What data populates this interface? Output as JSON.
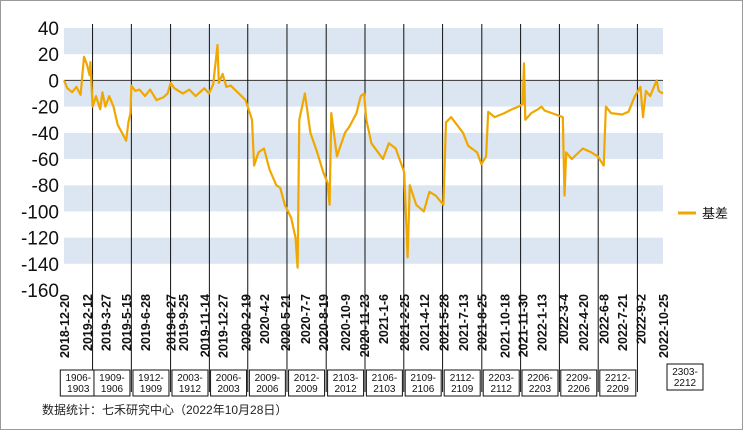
{
  "chart_data": {
    "type": "line",
    "series": [
      {
        "name": "基差",
        "color": "#F0A800",
        "points": [
          [
            "2018-12-20",
            0
          ],
          [
            "2018-12-28",
            -6
          ],
          [
            "2019-1-8",
            -9
          ],
          [
            "2019-1-18",
            -5
          ],
          [
            "2019-1-28",
            -11
          ],
          [
            "2019-2-5",
            18
          ],
          [
            "2019-2-12",
            12
          ],
          [
            "2019-2-18",
            4
          ],
          [
            "2019-2-20",
            14
          ],
          [
            "2019-2-25",
            -20
          ],
          [
            "2019-3-5",
            -12
          ],
          [
            "2019-3-15",
            -22
          ],
          [
            "2019-3-20",
            -9
          ],
          [
            "2019-3-27",
            -20
          ],
          [
            "2019-4-5",
            -12
          ],
          [
            "2019-4-15",
            -20
          ],
          [
            "2019-4-25",
            -34
          ],
          [
            "2019-5-5",
            -40
          ],
          [
            "2019-5-15",
            -46
          ],
          [
            "2019-5-20",
            -32
          ],
          [
            "2019-5-25",
            -25
          ],
          [
            "2019-5-27",
            -4
          ],
          [
            "2019-6-5",
            -8
          ],
          [
            "2019-6-15",
            -7
          ],
          [
            "2019-6-28",
            -12
          ],
          [
            "2019-7-10",
            -7
          ],
          [
            "2019-7-25",
            -15
          ],
          [
            "2019-8-10",
            -13
          ],
          [
            "2019-8-20",
            -10
          ],
          [
            "2019-8-27",
            -2
          ],
          [
            "2019-9-5",
            -6
          ],
          [
            "2019-9-25",
            -10
          ],
          [
            "2019-10-10",
            -7
          ],
          [
            "2019-10-25",
            -12
          ],
          [
            "2019-11-14",
            -6
          ],
          [
            "2019-11-25",
            -10
          ],
          [
            "2019-12-5",
            -3
          ],
          [
            "2019-12-15",
            27
          ],
          [
            "2019-12-18",
            -2
          ],
          [
            "2019-12-27",
            5
          ],
          [
            "2020-1-5",
            -5
          ],
          [
            "2020-1-15",
            -4
          ],
          [
            "2020-2-19",
            -15
          ],
          [
            "2020-3-5",
            -30
          ],
          [
            "2020-3-10",
            -65
          ],
          [
            "2020-3-20",
            -55
          ],
          [
            "2020-4-2",
            -52
          ],
          [
            "2020-4-15",
            -68
          ],
          [
            "2020-5-1",
            -80
          ],
          [
            "2020-5-10",
            -82
          ],
          [
            "2020-5-21",
            -95
          ],
          [
            "2020-6-5",
            -105
          ],
          [
            "2020-6-15",
            -120
          ],
          [
            "2020-6-20",
            -143
          ],
          [
            "2020-6-24",
            -30
          ],
          [
            "2020-7-7",
            -10
          ],
          [
            "2020-7-20",
            -40
          ],
          [
            "2020-8-5",
            -55
          ],
          [
            "2020-8-19",
            -70
          ],
          [
            "2020-8-29",
            -78
          ],
          [
            "2020-9-3",
            -95
          ],
          [
            "2020-9-7",
            -25
          ],
          [
            "2020-9-20",
            -58
          ],
          [
            "2020-10-9",
            -40
          ],
          [
            "2020-10-20",
            -35
          ],
          [
            "2020-11-5",
            -25
          ],
          [
            "2020-11-15",
            -12
          ],
          [
            "2020-11-23",
            -10
          ],
          [
            "2020-11-28",
            -30
          ],
          [
            "2020-12-10",
            -48
          ],
          [
            "2021-1-6",
            -60
          ],
          [
            "2021-1-20",
            -48
          ],
          [
            "2021-2-5",
            -52
          ],
          [
            "2021-2-25",
            -70
          ],
          [
            "2021-3-5",
            -135
          ],
          [
            "2021-3-10",
            -80
          ],
          [
            "2021-3-25",
            -95
          ],
          [
            "2021-4-12",
            -100
          ],
          [
            "2021-4-25",
            -85
          ],
          [
            "2021-5-10",
            -88
          ],
          [
            "2021-5-28",
            -95
          ],
          [
            "2021-6-3",
            -32
          ],
          [
            "2021-6-15",
            -28
          ],
          [
            "2021-7-13",
            -40
          ],
          [
            "2021-7-25",
            -50
          ],
          [
            "2021-8-15",
            -55
          ],
          [
            "2021-8-25",
            -64
          ],
          [
            "2021-9-5",
            -58
          ],
          [
            "2021-9-10",
            -24
          ],
          [
            "2021-9-25",
            -28
          ],
          [
            "2021-10-18",
            -25
          ],
          [
            "2021-11-5",
            -22
          ],
          [
            "2021-11-20",
            -20
          ],
          [
            "2021-11-30",
            -18
          ],
          [
            "2021-12-3",
            13
          ],
          [
            "2021-12-6",
            -30
          ],
          [
            "2021-12-20",
            -25
          ],
          [
            "2022-1-5",
            -22
          ],
          [
            "2022-1-13",
            -20
          ],
          [
            "2022-1-20",
            -23
          ],
          [
            "2022-2-15",
            -26
          ],
          [
            "2022-3-4",
            -28
          ],
          [
            "2022-3-8",
            -88
          ],
          [
            "2022-3-12",
            -55
          ],
          [
            "2022-3-25",
            -60
          ],
          [
            "2022-4-20",
            -52
          ],
          [
            "2022-5-10",
            -55
          ],
          [
            "2022-5-25",
            -58
          ],
          [
            "2022-6-8",
            -65
          ],
          [
            "2022-6-13",
            -20
          ],
          [
            "2022-6-25",
            -25
          ],
          [
            "2022-7-21",
            -26
          ],
          [
            "2022-8-5",
            -24
          ],
          [
            "2022-8-20",
            -12
          ],
          [
            "2022-9-2",
            -5
          ],
          [
            "2022-9-8",
            -28
          ],
          [
            "2022-9-15",
            -8
          ],
          [
            "2022-9-25",
            -12
          ],
          [
            "2022-10-10",
            0
          ],
          [
            "2022-10-15",
            -8
          ],
          [
            "2022-10-25",
            -10
          ]
        ]
      }
    ],
    "y_range": [
      -160,
      40
    ],
    "y_ticks": [
      "40",
      "20",
      "0",
      "-20",
      "-40",
      "-60",
      "-80",
      "-100",
      "-120",
      "-140",
      "-160"
    ],
    "x_tick_labels": [
      "2018-12-20",
      "2019-2-12",
      "2019-3-27",
      "2019-5-15",
      "2019-6-28",
      "2019-8-27",
      "2019-9-25",
      "2019-11-14",
      "2019-12-27",
      "2020-2-19",
      "2020-4-2",
      "2020-5-21",
      "2020-7-7",
      "2020-8-19",
      "2020-10-9",
      "2020-11-23",
      "2021-1-6",
      "2021-2-25",
      "2021-4-12",
      "2021-5-28",
      "2021-7-13",
      "2021-8-25",
      "2021-10-18",
      "2021-11-30",
      "2022-1-13",
      "2022-3-4",
      "2022-4-20",
      "2022-6-8",
      "2022-7-21",
      "2022-9-2",
      "2022-10-25"
    ],
    "contract_boxes": [
      "1906-\n1903",
      "1909-\n1906",
      "1912-\n1909",
      "2003-\n1912",
      "2006-\n2003",
      "2009-\n2006",
      "2012-\n2009",
      "2103-\n2012",
      "2106-\n2103",
      "2109-\n2106",
      "2112-\n2109",
      "2203-\n2112",
      "2206-\n2203",
      "2209-\n2206",
      "2212-\n2209",
      "2303-\n2212"
    ],
    "contract_dividers": [
      "2019-2-25",
      "2019-5-27",
      "2019-8-27",
      "2019-11-26",
      "2020-2-24",
      "2020-5-26",
      "2020-8-26",
      "2020-11-25",
      "2021-2-24",
      "2021-5-26",
      "2021-8-26",
      "2021-11-25",
      "2022-2-24",
      "2022-5-26",
      "2022-8-26"
    ],
    "legend": {
      "label": "基差",
      "position": "right"
    },
    "band_colors": [
      "#DCE6F2",
      "#FFFFFF"
    ],
    "source": "数据统计：七禾研究中心（2022年10月28日）"
  }
}
